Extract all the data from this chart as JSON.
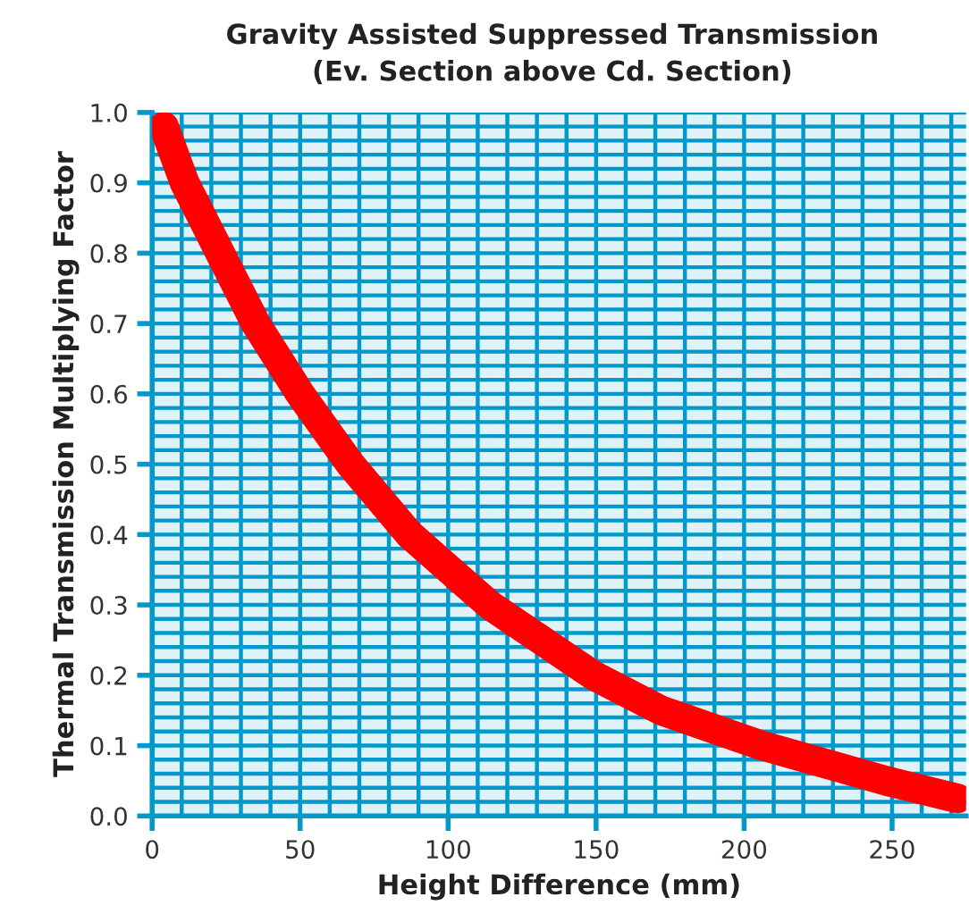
{
  "chart_data": {
    "type": "line",
    "title": "Gravity Assisted Suppressed Transmission",
    "subtitle": "(Ev. Section above Cd. Section)",
    "xlabel": "Height Difference (mm)",
    "ylabel": "Thermal Transmission Multiplying Factor",
    "x": [
      4,
      11,
      23,
      35,
      50,
      67,
      87,
      114,
      149,
      172,
      206,
      248,
      272
    ],
    "series": [
      {
        "color": "#ff0000",
        "values": [
          0.98,
          0.9,
          0.8,
          0.7,
          0.6,
          0.5,
          0.4,
          0.3,
          0.2,
          0.15,
          0.1,
          0.05,
          0.025
        ]
      }
    ],
    "xlim": [
      0,
      275
    ],
    "ylim": [
      0,
      1
    ],
    "xticks": [
      0,
      {
        "value": 10,
        "label": null
      },
      {
        "value": 20,
        "label": null
      },
      {
        "value": 30,
        "label": null
      },
      {
        "value": 40,
        "label": null
      },
      50,
      {
        "value": 60,
        "label": null
      },
      {
        "value": 70,
        "label": null
      },
      {
        "value": 80,
        "label": null
      },
      {
        "value": 90,
        "label": null
      },
      100,
      {
        "value": 110,
        "label": null
      },
      {
        "value": 120,
        "label": null
      },
      {
        "value": 130,
        "label": null
      },
      {
        "value": 140,
        "label": null
      },
      150,
      {
        "value": 160,
        "label": null
      },
      {
        "value": 170,
        "label": null
      },
      {
        "value": 180,
        "label": null
      },
      {
        "value": 190,
        "label": null
      },
      200,
      {
        "value": 210,
        "label": null
      },
      {
        "value": 220,
        "label": null
      },
      {
        "value": 230,
        "label": null
      },
      {
        "value": 240,
        "label": null
      },
      250,
      {
        "value": 260,
        "label": null
      },
      {
        "value": 270,
        "label": null
      }
    ],
    "yticks": [
      {
        "value": 0,
        "label": "0.0"
      },
      0.1,
      0.2,
      0.3,
      0.4,
      0.5,
      0.6,
      0.7,
      0.8,
      0.9,
      {
        "value": 1,
        "label": "1.0"
      }
    ],
    "grid": true,
    "marker": "none",
    "line_style": "solid"
  }
}
